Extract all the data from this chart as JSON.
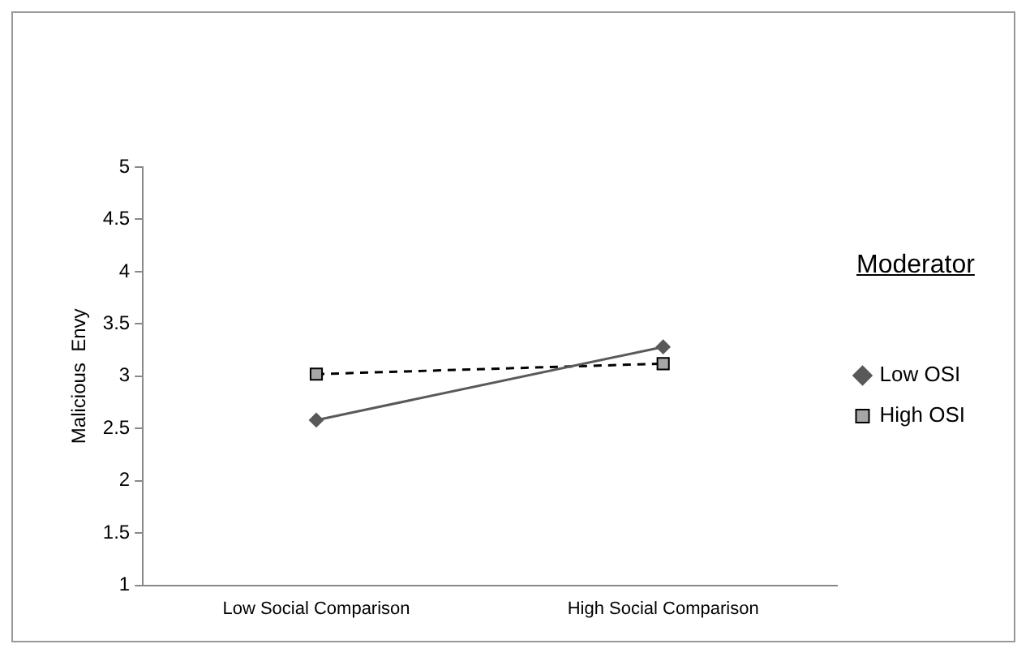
{
  "chart_data": {
    "type": "line",
    "ylabel": "Malicious  Envy",
    "legend_title": "Moderator",
    "categories": [
      "Low Social Comparison",
      "High Social Comparison"
    ],
    "series": [
      {
        "name": "Low OSI",
        "color": "#595959",
        "values": [
          2.58,
          3.28
        ],
        "marker": "diamond",
        "line_style": "solid"
      },
      {
        "name": "High OSI",
        "color": "#000000",
        "values": [
          3.02,
          3.12
        ],
        "marker": "square",
        "line_style": "dashed"
      }
    ],
    "ylim": [
      1,
      5
    ],
    "yticks": [
      1,
      1.5,
      2,
      2.5,
      3,
      3.5,
      4,
      4.5,
      5
    ],
    "grid": false,
    "legend": "right"
  }
}
